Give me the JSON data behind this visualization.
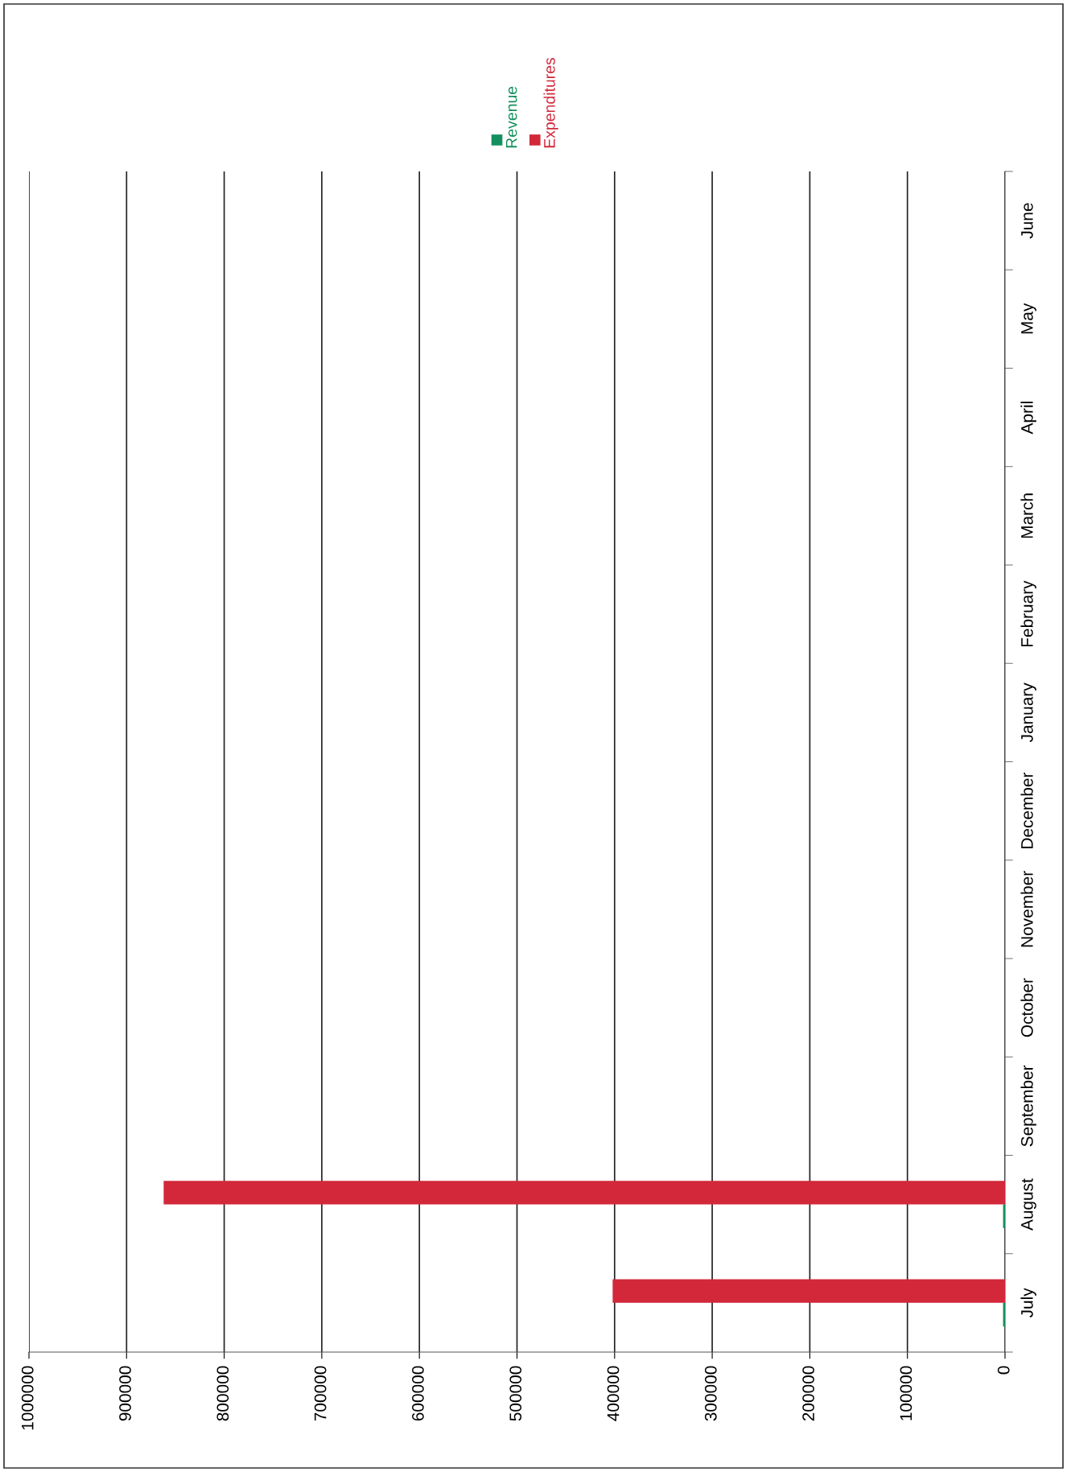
{
  "chart_data": {
    "type": "bar",
    "orientation": "horizontal",
    "categories": [
      "June",
      "May",
      "April",
      "March",
      "February",
      "January",
      "December",
      "November",
      "October",
      "September",
      "August",
      "July"
    ],
    "series": [
      {
        "name": "Revenue",
        "color": "#13905e",
        "values": [
          0,
          0,
          0,
          0,
          0,
          0,
          0,
          0,
          0,
          0,
          2000,
          2000
        ]
      },
      {
        "name": "Expenditures",
        "color": "#d2283a",
        "values": [
          0,
          0,
          0,
          0,
          0,
          0,
          0,
          0,
          0,
          0,
          862000,
          402000
        ]
      }
    ],
    "xlim": [
      1000000,
      0
    ],
    "xticks": [
      0,
      100000,
      200000,
      300000,
      400000,
      500000,
      600000,
      700000,
      800000,
      900000,
      1000000
    ],
    "grid": "x",
    "legend": "top"
  }
}
